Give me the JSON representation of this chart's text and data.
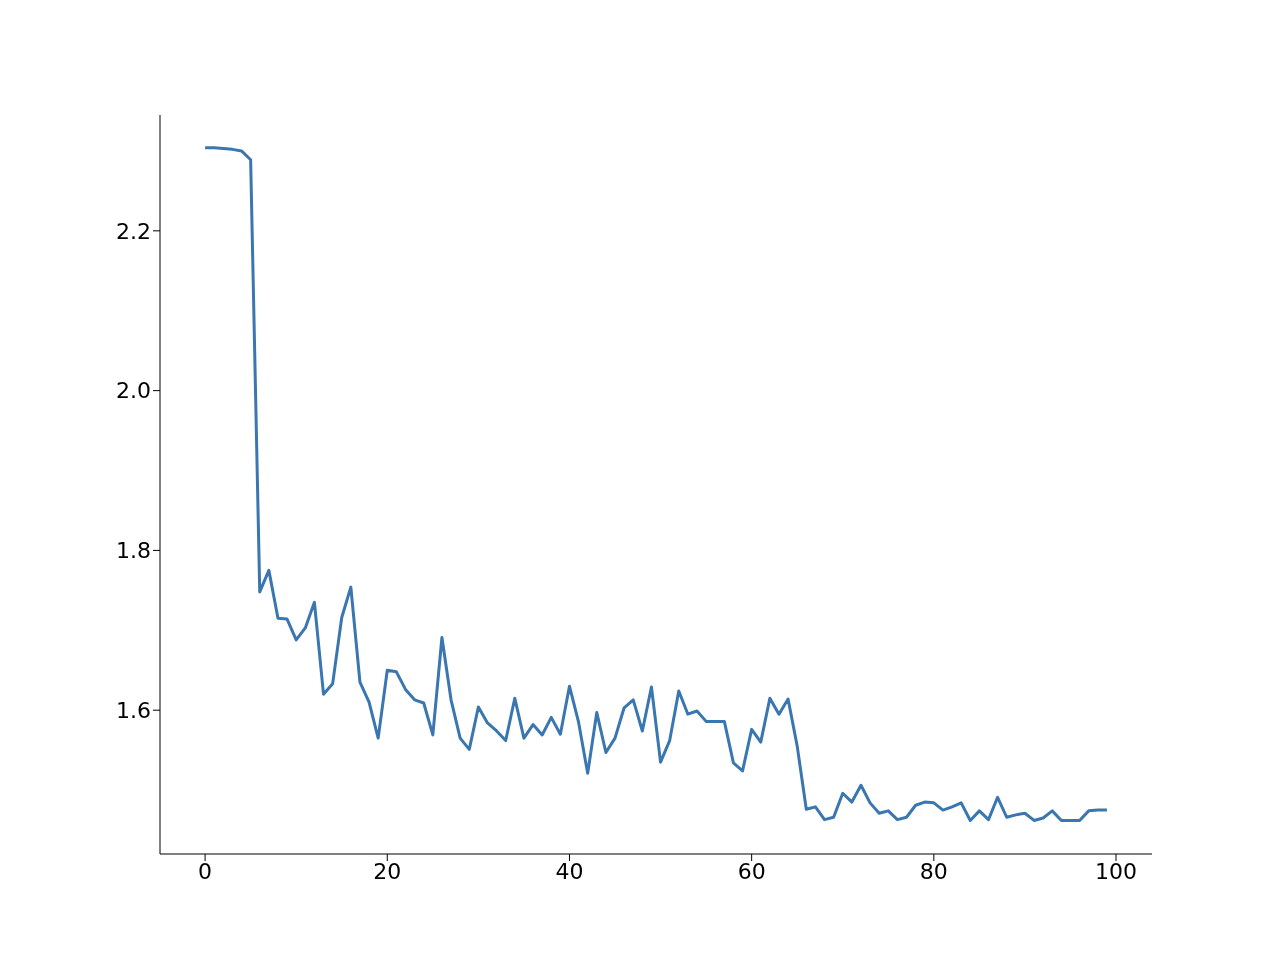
{
  "chart_data": {
    "type": "line",
    "x": [
      0,
      1,
      2,
      3,
      4,
      5,
      6,
      7,
      8,
      9,
      10,
      11,
      12,
      13,
      14,
      15,
      16,
      17,
      18,
      19,
      20,
      21,
      22,
      23,
      24,
      25,
      26,
      27,
      28,
      29,
      30,
      31,
      32,
      33,
      34,
      35,
      36,
      37,
      38,
      39,
      40,
      41,
      42,
      43,
      44,
      45,
      46,
      47,
      48,
      49,
      50,
      51,
      52,
      53,
      54,
      55,
      56,
      57,
      58,
      59,
      60,
      61,
      62,
      63,
      64,
      65,
      66,
      67,
      68,
      69,
      70,
      71,
      72,
      73,
      74,
      75,
      76,
      77,
      78,
      79,
      80,
      81,
      82,
      83,
      84,
      85,
      86,
      87,
      88,
      89,
      90,
      91,
      92,
      93,
      94,
      95,
      96,
      97,
      98,
      99
    ],
    "series": [
      {
        "color": "#3a76af",
        "values": [
          2.304,
          2.304,
          2.303,
          2.302,
          2.3,
          2.289,
          1.748,
          1.775,
          1.715,
          1.714,
          1.688,
          1.703,
          1.735,
          1.62,
          1.633,
          1.716,
          1.754,
          1.635,
          1.61,
          1.565,
          1.65,
          1.648,
          1.626,
          1.613,
          1.609,
          1.569,
          1.691,
          1.613,
          1.565,
          1.551,
          1.604,
          1.584,
          1.574,
          1.562,
          1.615,
          1.565,
          1.582,
          1.569,
          1.591,
          1.57,
          1.63,
          1.585,
          1.521,
          1.597,
          1.547,
          1.565,
          1.603,
          1.613,
          1.574,
          1.629,
          1.535,
          1.562,
          1.624,
          1.595,
          1.599,
          1.586,
          1.586,
          1.586,
          1.534,
          1.524,
          1.576,
          1.56,
          1.615,
          1.595,
          1.614,
          1.555,
          1.476,
          1.479,
          1.463,
          1.466,
          1.496,
          1.485,
          1.506,
          1.484,
          1.471,
          1.474,
          1.463,
          1.466,
          1.481,
          1.485,
          1.484,
          1.475,
          1.479,
          1.484,
          1.462,
          1.474,
          1.463,
          1.491,
          1.466,
          1.469,
          1.471,
          1.462,
          1.465,
          1.474,
          1.462,
          1.462,
          1.462,
          1.474,
          1.475,
          1.475
        ]
      }
    ],
    "xlim": [
      -4.95,
      103.95
    ],
    "xticks": [
      0,
      20,
      40,
      60,
      80,
      100
    ],
    "ylim": [
      1.42,
      2.345
    ],
    "yticks": [
      {
        "value": 1.6,
        "label": "1.6"
      },
      {
        "value": 1.8,
        "label": "1.8"
      },
      {
        "value": 2.0,
        "label": "2.0"
      },
      {
        "value": 2.2,
        "label": "2.2"
      }
    ],
    "grid": false,
    "legend": false,
    "marker": "none",
    "line_style": "solid"
  }
}
